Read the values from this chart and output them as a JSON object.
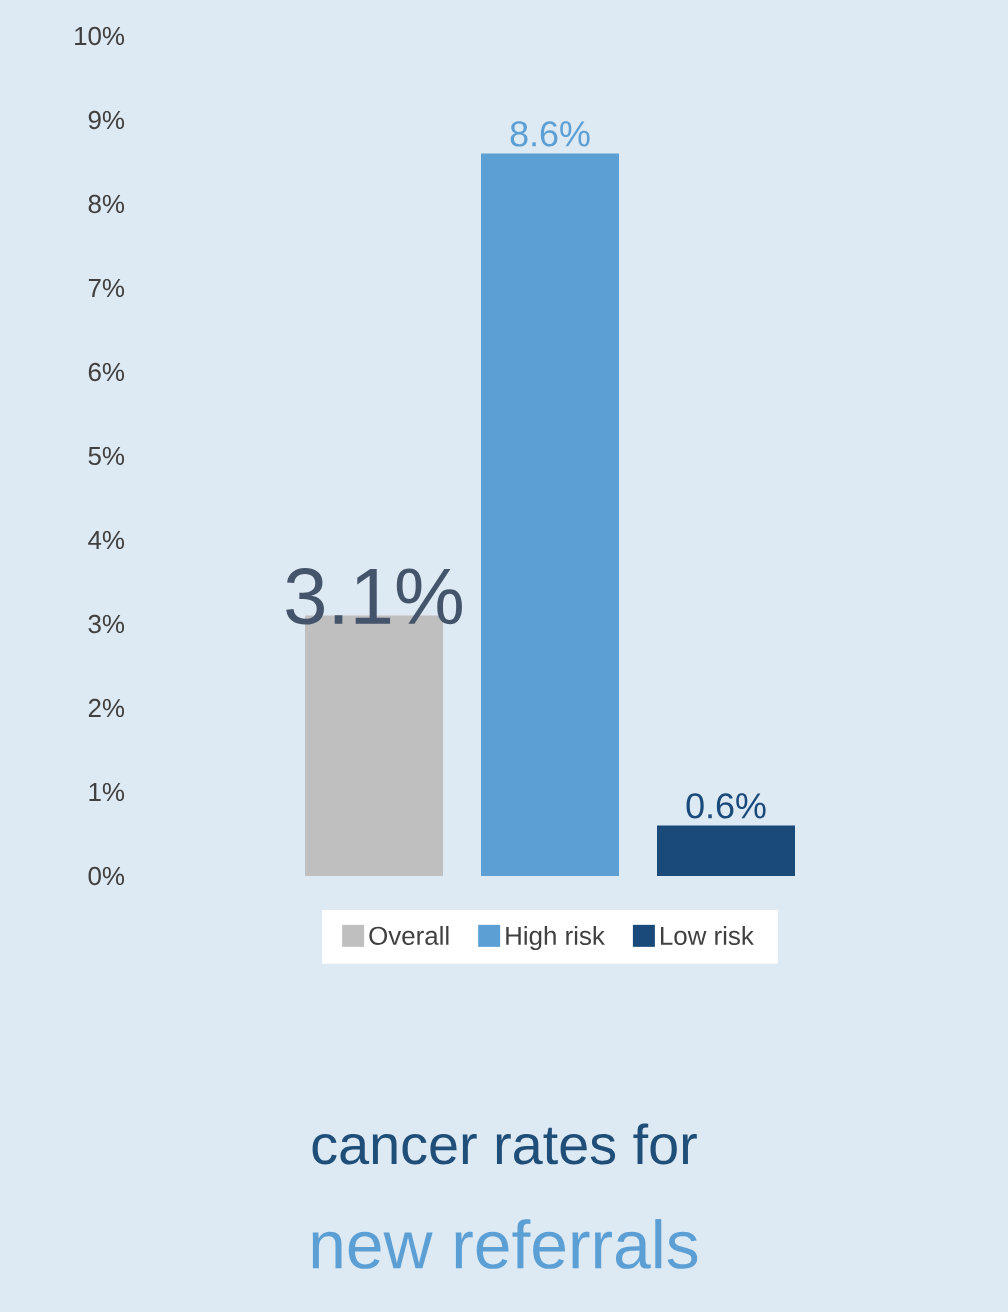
{
  "chart_data": {
    "type": "bar",
    "title": "cancer rates for",
    "subtitle": "new referrals",
    "categories": [
      null
    ],
    "series": [
      {
        "name": "Overall",
        "color": "#bfbfbf",
        "values": [
          3.1
        ],
        "value_labels": [
          "3.1%"
        ]
      },
      {
        "name": "High risk",
        "color": "#5b9fd4",
        "values": [
          8.6
        ],
        "value_labels": [
          "8.6%"
        ]
      },
      {
        "name": "Low risk",
        "color": "#1a4a7a",
        "values": [
          0.6
        ],
        "value_labels": [
          "0.6%"
        ]
      }
    ],
    "ylim": [
      0,
      10
    ],
    "yticks": [
      {
        "value": 0,
        "label": "0%"
      },
      {
        "value": 1,
        "label": "1%"
      },
      {
        "value": 2,
        "label": "2%"
      },
      {
        "value": 3,
        "label": "3%"
      },
      {
        "value": 4,
        "label": "4%"
      },
      {
        "value": 5,
        "label": "5%"
      },
      {
        "value": 6,
        "label": "6%"
      },
      {
        "value": 7,
        "label": "7%"
      },
      {
        "value": 8,
        "label": "8%"
      },
      {
        "value": 9,
        "label": "9%"
      },
      {
        "value": 10,
        "label": "10%"
      }
    ],
    "legend": "bottom",
    "grid": false
  }
}
